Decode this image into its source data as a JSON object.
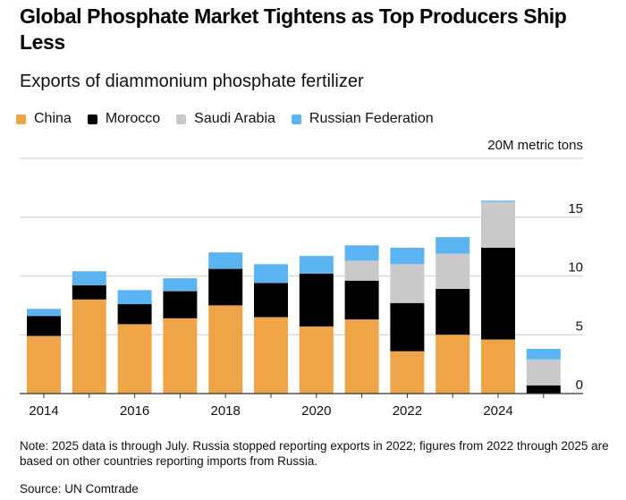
{
  "header": {
    "title": "Global Phosphate Market Tightens as Top Producers Ship Less",
    "subtitle": "Exports of diammonium phosphate fertilizer"
  },
  "legend": [
    {
      "label": "China",
      "color": "#eea447"
    },
    {
      "label": "Morocco",
      "color": "#000000"
    },
    {
      "label": "Saudi Arabia",
      "color": "#c9c9c9"
    },
    {
      "label": "Russian Federation",
      "color": "#5ab4f2"
    }
  ],
  "units_label": "20M metric tons",
  "footer": {
    "note": "Note: 2025 data is through July. Russia stopped reporting exports in 2022; figures from 2022 through 2025 are based on other countries reporting imports from Russia.",
    "source": "Source: UN Comtrade"
  },
  "chart_data": {
    "type": "bar",
    "stacked": true,
    "title": "Global Phosphate Market Tightens as Top Producers Ship Less",
    "subtitle": "Exports of diammonium phosphate fertilizer",
    "xlabel": "",
    "ylabel": "Million metric tons",
    "unit_note": "20M metric tons",
    "categories": [
      "2014",
      "2015",
      "2016",
      "2017",
      "2018",
      "2019",
      "2020",
      "2021",
      "2022",
      "2023",
      "2024",
      "2025"
    ],
    "x_tick_labels": [
      "2014",
      "2016",
      "2018",
      "2020",
      "2022",
      "2024"
    ],
    "y_ticks": [
      0,
      5,
      10,
      15,
      20
    ],
    "y_tick_labels": [
      "0",
      "5",
      "10",
      "15",
      ""
    ],
    "ylim": [
      0,
      20
    ],
    "grid": true,
    "legend_position": "top-left",
    "series": [
      {
        "name": "China",
        "color": "#eea447",
        "values": [
          4.9,
          8.0,
          5.9,
          6.4,
          7.5,
          6.5,
          5.7,
          6.3,
          3.6,
          5.0,
          4.6,
          0
        ]
      },
      {
        "name": "Morocco",
        "color": "#000000",
        "values": [
          1.7,
          1.2,
          1.7,
          2.3,
          3.1,
          2.9,
          4.5,
          3.3,
          4.1,
          3.9,
          7.8,
          0.7
        ]
      },
      {
        "name": "Saudi Arabia",
        "color": "#c9c9c9",
        "values": [
          0,
          0,
          0,
          0,
          0,
          0,
          0,
          1.7,
          3.3,
          3.0,
          3.9,
          2.2
        ]
      },
      {
        "name": "Russian Federation",
        "color": "#5ab4f2",
        "values": [
          0.6,
          1.2,
          1.2,
          1.1,
          1.4,
          1.6,
          1.5,
          1.3,
          1.4,
          1.4,
          0.1,
          0.9
        ]
      }
    ],
    "annotations": [
      "Note: 2025 data is through July. Russia stopped reporting exports in 2022; figures from 2022 through 2025 are based on other countries reporting imports from Russia."
    ]
  }
}
